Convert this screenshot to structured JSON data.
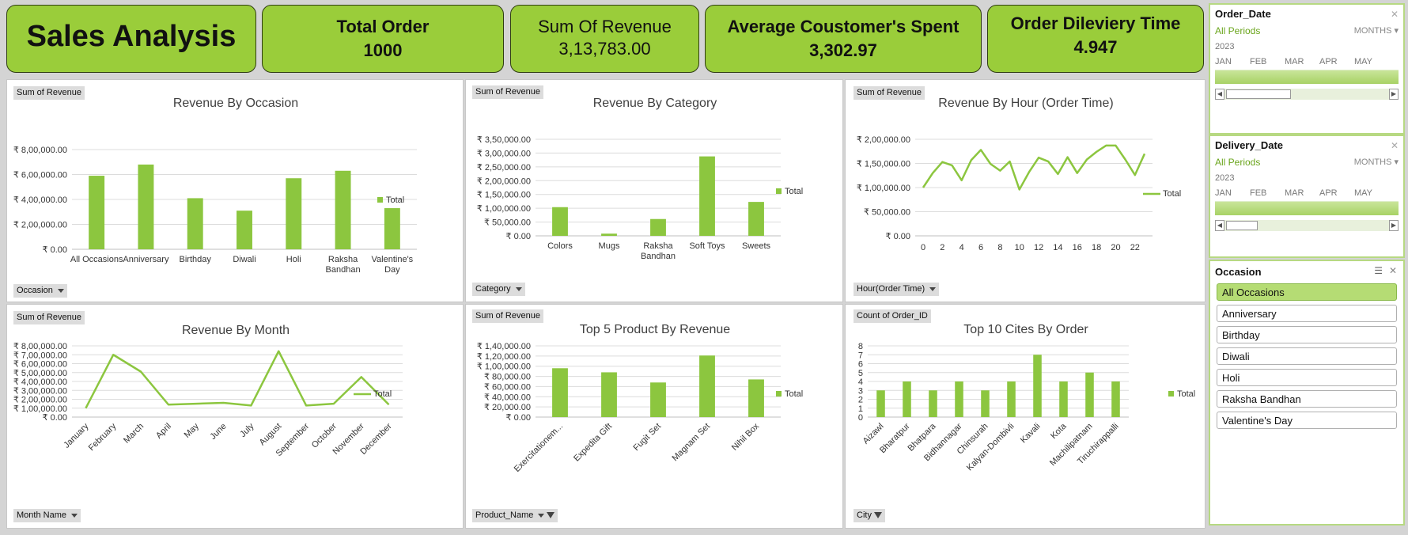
{
  "kpis": [
    {
      "title": "Sales Analysis",
      "value": ""
    },
    {
      "title": "Total Order",
      "value": "1000"
    },
    {
      "title": "Sum Of Revenue",
      "value": "3,13,783.00"
    },
    {
      "title": "Average Coustomer's Spent",
      "value": "3,302.97"
    },
    {
      "title": "Order Dileviery Time",
      "value": "4.947"
    }
  ],
  "colors": {
    "accent": "#9acd3a",
    "bar": "#8cc63f",
    "line": "#8cc63f"
  },
  "chart_data": [
    {
      "type": "bar",
      "title": "Revenue  By Occasion",
      "value_field": "Sum of Revenue",
      "axis_field": "Occasion",
      "categories": [
        "All Occasions",
        "Anniversary",
        "Birthday",
        "Diwali",
        "Holi",
        "Raksha Bandhan",
        "Valentine's Day"
      ],
      "series": [
        {
          "name": "Total",
          "values": [
            590000,
            680000,
            410000,
            310000,
            570000,
            630000,
            330000
          ]
        }
      ],
      "ylim": [
        0,
        800000
      ],
      "yticks": [
        "₹ 0.00",
        "₹ 2,00,000.00",
        "₹ 4,00,000.00",
        "₹ 6,00,000.00",
        "₹ 8,00,000.00"
      ],
      "legend": "right",
      "grid": true
    },
    {
      "type": "bar",
      "title": "Revenue  By Category",
      "value_field": "Sum of Revenue",
      "axis_field": "Category",
      "categories": [
        "Colors",
        "Mugs",
        "Raksha Bandhan",
        "Soft Toys",
        "Sweets"
      ],
      "series": [
        {
          "name": "Total",
          "values": [
            104000,
            8000,
            61000,
            288000,
            123000
          ]
        }
      ],
      "ylim": [
        0,
        350000
      ],
      "yticks": [
        "₹ 0.00",
        "₹ 50,000.00",
        "₹ 1,00,000.00",
        "₹ 1,50,000.00",
        "₹ 2,00,000.00",
        "₹ 2,50,000.00",
        "₹ 3,00,000.00",
        "₹ 3,50,000.00"
      ],
      "legend": "right",
      "grid": true
    },
    {
      "type": "line",
      "title": "Revenue By Hour (Order Time)",
      "value_field": "Sum of Revenue",
      "axis_field": "Hour(Order Time)",
      "x": [
        0,
        1,
        2,
        3,
        4,
        5,
        6,
        7,
        8,
        9,
        10,
        11,
        12,
        13,
        14,
        15,
        16,
        17,
        18,
        19,
        20,
        21,
        22,
        23
      ],
      "xticks": [
        "0",
        "2",
        "4",
        "6",
        "8",
        "10",
        "12",
        "14",
        "16",
        "18",
        "20",
        "22"
      ],
      "series": [
        {
          "name": "Total",
          "values": [
            100000,
            130000,
            153000,
            146000,
            115000,
            157000,
            178000,
            149000,
            135000,
            154000,
            96000,
            132000,
            162000,
            154000,
            128000,
            163000,
            130000,
            158000,
            174000,
            187000,
            187000,
            158000,
            126000,
            170000
          ]
        }
      ],
      "ylim": [
        0,
        200000
      ],
      "yticks": [
        "₹ 0.00",
        "₹ 50,000.00",
        "₹ 1,00,000.00",
        "₹ 1,50,000.00",
        "₹ 2,00,000.00"
      ],
      "legend": "right",
      "grid": true
    },
    {
      "type": "line",
      "title": "Revenue By Month",
      "value_field": "Sum of Revenue",
      "axis_field": "Month Name",
      "categories": [
        "January",
        "February",
        "March",
        "April",
        "May",
        "June",
        "July",
        "August",
        "September",
        "October",
        "November",
        "December"
      ],
      "series": [
        {
          "name": "Total",
          "values": [
            100000,
            700000,
            510000,
            140000,
            150000,
            160000,
            130000,
            740000,
            130000,
            150000,
            450000,
            140000
          ]
        }
      ],
      "ylim": [
        0,
        800000
      ],
      "yticks": [
        "₹ 0.00",
        "₹ 1,00,000.00",
        "₹ 2,00,000.00",
        "₹ 3,00,000.00",
        "₹ 4,00,000.00",
        "₹ 5,00,000.00",
        "₹ 6,00,000.00",
        "₹ 7,00,000.00",
        "₹ 8,00,000.00"
      ],
      "legend": "right",
      "grid": true
    },
    {
      "type": "bar",
      "title": "Top 5 Product By Revenue",
      "value_field": "Sum of Revenue",
      "axis_field": "Product_Name",
      "categories": [
        "Exercitationem...",
        "Expedita Gift",
        "Fugit Set",
        "Magnam Set",
        "Nihil Box"
      ],
      "series": [
        {
          "name": "Total",
          "values": [
            96000,
            88000,
            68000,
            121000,
            74000
          ]
        }
      ],
      "ylim": [
        0,
        140000
      ],
      "yticks": [
        "₹ 0.00",
        "₹ 20,000.00",
        "₹ 40,000.00",
        "₹ 60,000.00",
        "₹ 80,000.00",
        "₹ 1,00,000.00",
        "₹ 1,20,000.00",
        "₹ 1,40,000.00"
      ],
      "legend": "right",
      "grid": true
    },
    {
      "type": "bar",
      "title": "Top 10 Cites By Order",
      "value_field": "Count of Order_ID",
      "axis_field": "City",
      "categories": [
        "Aizawl",
        "Bharatpur",
        "Bhatpara",
        "Bidhannagar",
        "Chinsurah",
        "Kalyan-Dombivli",
        "Kavali",
        "Kota",
        "Machilipatnam",
        "Tiruchirappalli"
      ],
      "series": [
        {
          "name": "Total",
          "values": [
            3,
            4,
            3,
            4,
            3,
            4,
            7,
            4,
            5,
            4
          ]
        }
      ],
      "ylim": [
        0,
        8
      ],
      "yticks": [
        "0",
        "1",
        "2",
        "3",
        "4",
        "5",
        "6",
        "7",
        "8"
      ],
      "legend": "right",
      "grid": true
    }
  ],
  "slicers": {
    "order_date": {
      "title": "Order_Date",
      "period": "All Periods",
      "level": "MONTHS",
      "year": "2023",
      "months": [
        "JAN",
        "FEB",
        "MAR",
        "APR",
        "MAY"
      ]
    },
    "delivery_date": {
      "title": "Delivery_Date",
      "period": "All Periods",
      "level": "MONTHS",
      "year": "2023",
      "months": [
        "JAN",
        "FEB",
        "MAR",
        "APR",
        "MAY"
      ]
    },
    "occasion": {
      "title": "Occasion",
      "items": [
        "All Occasions",
        "Anniversary",
        "Birthday",
        "Diwali",
        "Holi",
        "Raksha Bandhan",
        "Valentine's Day"
      ],
      "selected": "All Occasions"
    }
  }
}
